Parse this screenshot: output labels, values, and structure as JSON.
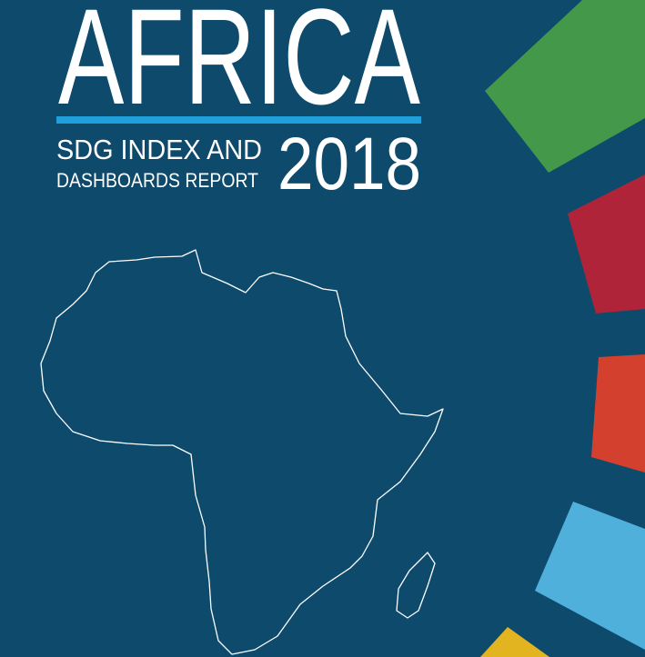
{
  "cover": {
    "title": "AFRICA",
    "subtitle_line1": "SDG INDEX AND",
    "subtitle_line2": "DASHBOARDS REPORT",
    "year": "2018"
  }
}
